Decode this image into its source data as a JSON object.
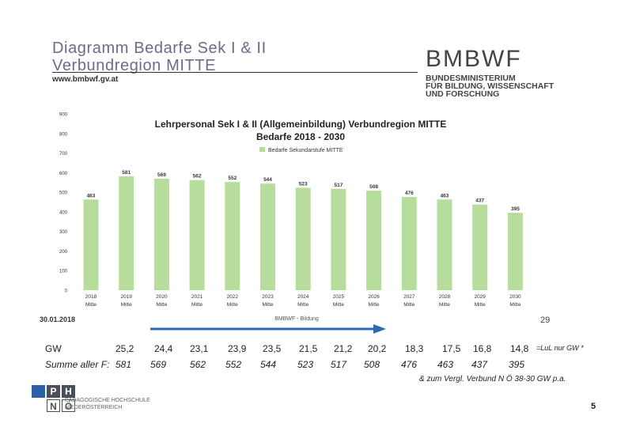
{
  "header": {
    "title_line1": "Diagramm Bedarfe Sek I & II",
    "title_line2": "Verbundregion MITTE",
    "url": "www.bmbwf.gv.at",
    "logo": "BMBWF",
    "ministry_line1": "BUNDESMINISTERIUM",
    "ministry_line2": "FÜR BILDUNG, WISSENSCHAFT",
    "ministry_line3": "UND FORSCHUNG"
  },
  "chart_data": {
    "type": "bar",
    "title": "Lehrpersonal Sek I & II (Allgemeinbildung) Verbundregion MITTE",
    "subtitle": "Bedarfe 2018 - 2030",
    "legend": "Bedarfe Sekundarstufe MITTE",
    "legend_position": "top-right",
    "categories": [
      [
        "2018",
        "Mitte"
      ],
      [
        "2019",
        "Mitte"
      ],
      [
        "2020",
        "Mitte"
      ],
      [
        "2021",
        "Mitte"
      ],
      [
        "2022",
        "Mitte"
      ],
      [
        "2023",
        "Mitte"
      ],
      [
        "2024",
        "Mitte"
      ],
      [
        "2025",
        "Mitte"
      ],
      [
        "2026",
        "Mitte"
      ],
      [
        "2027",
        "Mitte"
      ],
      [
        "2028",
        "Mitte"
      ],
      [
        "2029",
        "Mitte"
      ],
      [
        "2030",
        "Mitte"
      ]
    ],
    "values": [
      463,
      581,
      569,
      562,
      552,
      544,
      523,
      517,
      508,
      476,
      463,
      437,
      395
    ],
    "data_labels": [
      "463",
      "581",
      "569",
      "562",
      "552",
      "544",
      "523",
      "517",
      "508",
      "476",
      "463",
      "437",
      "395"
    ],
    "ylim": [
      0,
      900
    ],
    "yticks": [
      0,
      100,
      200,
      300,
      400,
      500,
      600,
      700,
      800,
      900
    ],
    "grid": false,
    "bar_color": "#b7dd9c",
    "footer_left": "30.01.2018",
    "footer_center": "BMBWF - Bildung"
  },
  "page_num_left": "29",
  "table": {
    "gw_label": "GW",
    "sum_label": "Summe aller F:",
    "gw_values": [
      "25,2",
      "24,4",
      "23,1",
      "23,9",
      "23,5",
      "21,5",
      "21,2",
      "20,2",
      "18,3",
      "17,5",
      "16,8",
      "14,8"
    ],
    "sum_values": [
      "581",
      "569",
      "562",
      "552",
      "544",
      "523",
      "517",
      "508",
      "476",
      "463",
      "437",
      "395"
    ],
    "gw_note": "=LuL nur GW *",
    "ref_note": "& zum Vergl. Verbund N Ö 38-30 GW p.a."
  },
  "footer": {
    "ph_cells": [
      "P",
      "H",
      "N",
      "Ö"
    ],
    "ph_line1": "PÄDAGOGISCHE HOCHSCHULE",
    "ph_line2": "NIEDERÖSTERREICH",
    "slide_number": "5"
  },
  "colors": {
    "arrow": "#2e68b3",
    "title": "#6b6b8a",
    "ph_dark": "#4a4f5a",
    "ph_accent": "#2c5fa8"
  }
}
